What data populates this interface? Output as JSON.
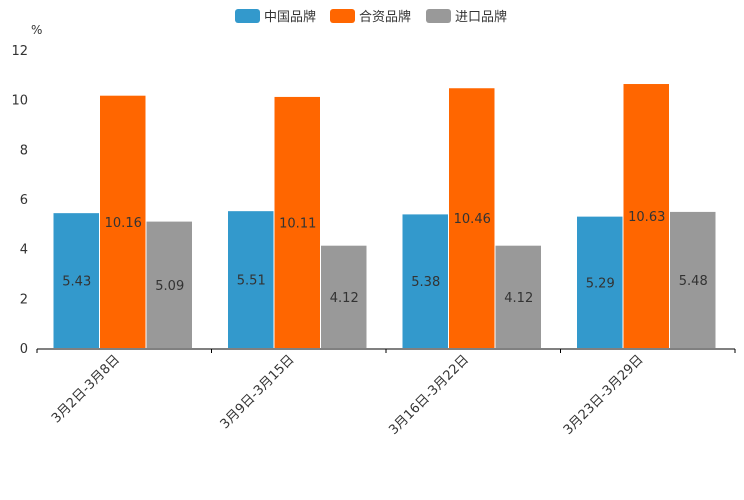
{
  "chart_data": {
    "type": "bar",
    "unit_label": "%",
    "categories": [
      "3月2日-3月8日",
      "3月9日-3月15日",
      "3月16日-3月22日",
      "3月23日-3月29日"
    ],
    "series": [
      {
        "name": "中国品牌",
        "color": "#3399cc",
        "values": [
          5.43,
          5.51,
          5.38,
          5.29
        ]
      },
      {
        "name": "合资品牌",
        "color": "#ff6600",
        "values": [
          10.16,
          10.11,
          10.46,
          10.63
        ]
      },
      {
        "name": "进口品牌",
        "color": "#999999",
        "values": [
          5.09,
          4.12,
          4.12,
          5.48
        ]
      }
    ],
    "yticks": [
      0,
      2,
      4,
      6,
      8,
      10,
      12
    ],
    "ylim": [
      0,
      12
    ],
    "legend_position": "top-center",
    "grid": false
  }
}
